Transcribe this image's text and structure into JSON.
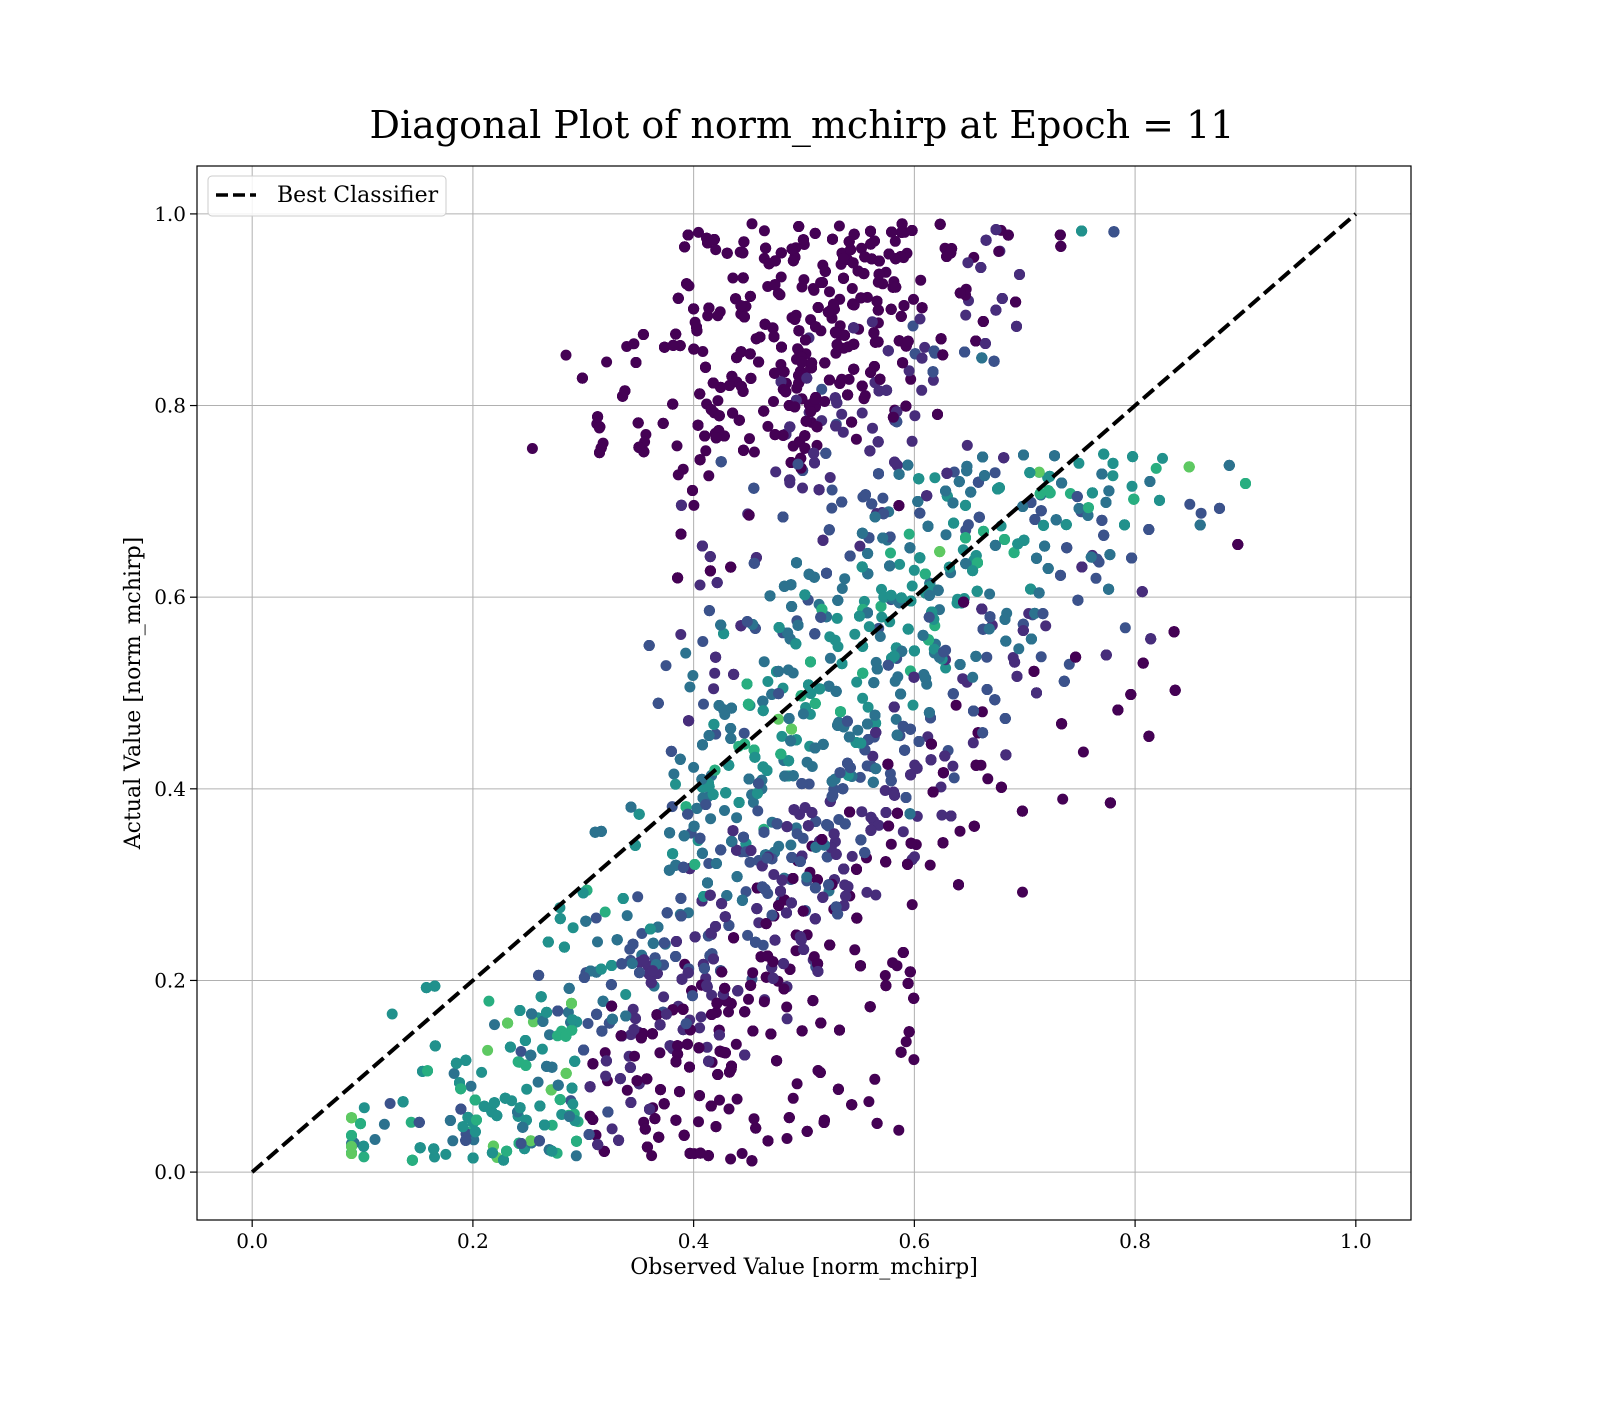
{
  "chart_data": {
    "type": "scatter",
    "title": "Diagonal Plot of norm_mchirp at Epoch = 11",
    "xlabel": "Observed Value [norm_mchirp]",
    "ylabel": "Actual Value [norm_mchirp]",
    "xlim": [
      -0.05,
      1.05
    ],
    "ylim": [
      -0.05,
      1.05
    ],
    "x_ticks": [
      0.0,
      0.2,
      0.4,
      0.6,
      0.8,
      1.0
    ],
    "x_tick_labels": [
      "0.0",
      "0.2",
      "0.4",
      "0.6",
      "0.8",
      "1.0"
    ],
    "y_ticks": [
      0.0,
      0.2,
      0.4,
      0.6,
      0.8,
      1.0
    ],
    "y_tick_labels": [
      "0.0",
      "0.2",
      "0.4",
      "0.6",
      "0.8",
      "1.0"
    ],
    "grid": true,
    "legend_position": "top-left",
    "colormap": "viridis",
    "colormap_colors": [
      "#440154",
      "#472d7b",
      "#3b528b",
      "#2c728e",
      "#21918c",
      "#28ae80",
      "#5ec962",
      "#addc30",
      "#fde725"
    ],
    "series": [
      {
        "name": "Best Classifier",
        "style": "dashed",
        "color": "#000000",
        "x": [
          0.0,
          1.0
        ],
        "y": [
          0.0,
          1.0
        ]
      }
    ],
    "scatter_clusters": [
      {
        "x": [
          0.09,
          0.3
        ],
        "y": [
          0.0,
          0.3
        ],
        "density": "medium",
        "dominant_color": "#21918c"
      },
      {
        "x": [
          0.25,
          0.5
        ],
        "y": [
          0.02,
          0.45
        ],
        "density": "high",
        "dominant_color": "#3b528b"
      },
      {
        "x": [
          0.38,
          0.62
        ],
        "y": [
          0.02,
          0.99
        ],
        "density": "very high",
        "dominant_color": "#472d7b"
      },
      {
        "x": [
          0.55,
          0.8
        ],
        "y": [
          0.35,
          0.99
        ],
        "density": "high",
        "dominant_color": "#3b528b"
      },
      {
        "x": [
          0.7,
          0.9
        ],
        "y": [
          0.6,
          0.99
        ],
        "density": "medium",
        "dominant_color": "#2c728e"
      }
    ]
  }
}
